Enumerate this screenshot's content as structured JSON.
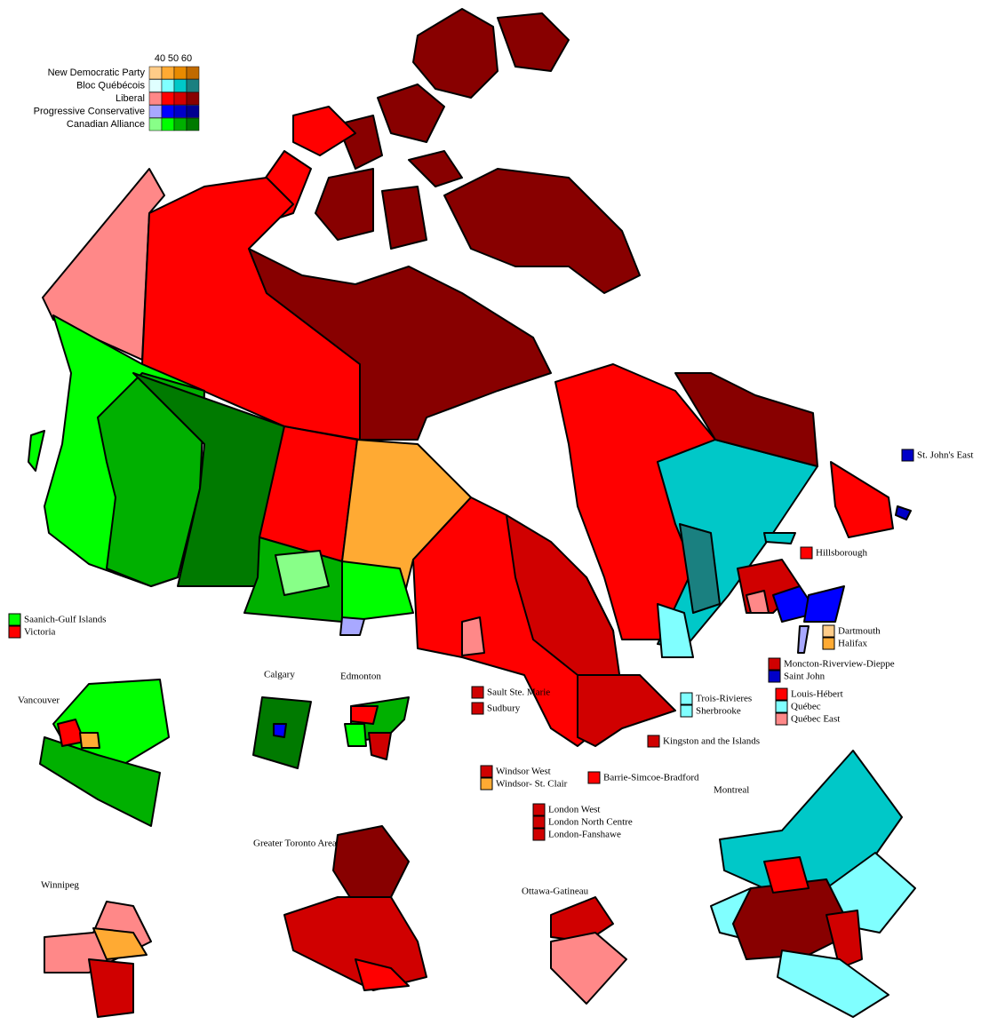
{
  "legend": {
    "thresholds": [
      40,
      50,
      60
    ],
    "parties": [
      {
        "name": "New Democratic Party",
        "colors": [
          "#ffcc88",
          "#ffaa33",
          "#e88a00",
          "#c06a00"
        ]
      },
      {
        "name": "Bloc Québécois",
        "colors": [
          "#e0ffff",
          "#80ffff",
          "#00c8c8",
          "#1a8080"
        ]
      },
      {
        "name": "Liberal",
        "colors": [
          "#ff8888",
          "#ff0000",
          "#d00000",
          "#880000"
        ]
      },
      {
        "name": "Progressive Conservative",
        "colors": [
          "#a8a8ff",
          "#0000ff",
          "#0000c8",
          "#000090"
        ]
      },
      {
        "name": "Canadian Alliance",
        "colors": [
          "#88ff88",
          "#00ff00",
          "#00b000",
          "#007a00"
        ]
      }
    ]
  },
  "callouts": [
    {
      "label": "St. John's East",
      "color": "#0000c8"
    },
    {
      "label": "Hillsborough",
      "color": "#ff0000"
    },
    {
      "label": "Saanich-Gulf Islands",
      "color": "#00ff00"
    },
    {
      "label": "Victoria",
      "color": "#ff0000"
    },
    {
      "label": "Dartmouth",
      "color": "#ffcc88"
    },
    {
      "label": "Halifax",
      "color": "#ffaa33"
    },
    {
      "label": "Moncton-Riverview-Dieppe",
      "color": "#d00000"
    },
    {
      "label": "Saint John",
      "color": "#0000c8"
    },
    {
      "label": "Sault Ste. Marie",
      "color": "#d00000"
    },
    {
      "label": "Sudbury",
      "color": "#d00000"
    },
    {
      "label": "Trois-Rivieres",
      "color": "#80ffff"
    },
    {
      "label": "Sherbrooke",
      "color": "#80ffff"
    },
    {
      "label": "Louis-Hébert",
      "color": "#ff0000"
    },
    {
      "label": "Québec",
      "color": "#80ffff"
    },
    {
      "label": "Québec East",
      "color": "#ff8888"
    },
    {
      "label": "Kingston and the Islands",
      "color": "#d00000"
    },
    {
      "label": "Windsor West",
      "color": "#d00000"
    },
    {
      "label": "Windsor- St. Clair",
      "color": "#ffaa33"
    },
    {
      "label": "Barrie-Simcoe-Bradford",
      "color": "#ff0000"
    },
    {
      "label": "London West",
      "color": "#d00000"
    },
    {
      "label": "London North Centre",
      "color": "#d00000"
    },
    {
      "label": "London-Fanshawe",
      "color": "#d00000"
    }
  ],
  "insets": [
    "Vancouver",
    "Calgary",
    "Edmonton",
    "Montreal",
    "Greater Toronto Area",
    "Winnipeg",
    "Ottawa-Gatineau"
  ]
}
